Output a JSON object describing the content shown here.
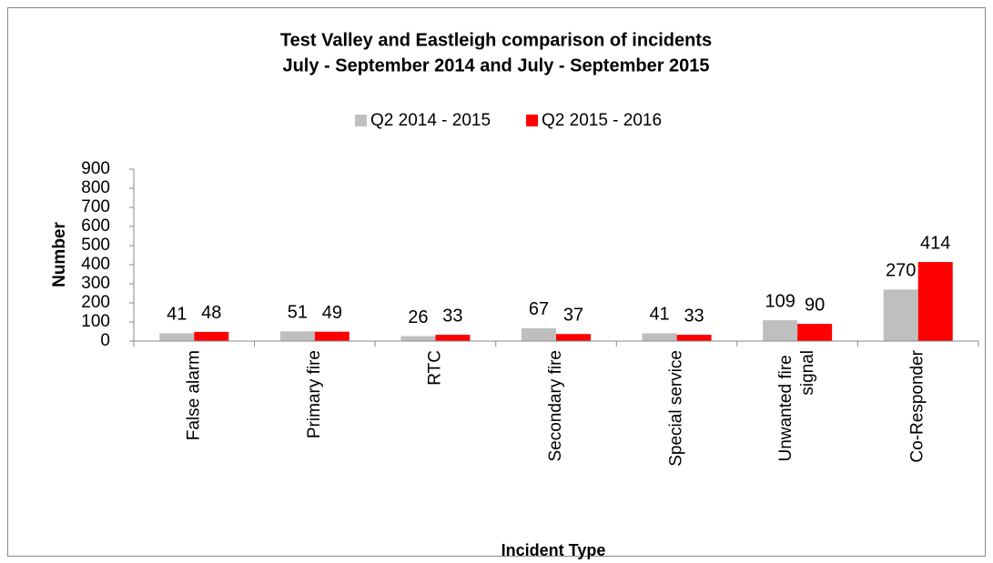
{
  "chart_data": {
    "type": "bar",
    "title": [
      "Test Valley and Eastleigh comparison of incidents",
      "July - September 2014 and July - September 2015"
    ],
    "x_label": "Incident Type",
    "y_label": "Number",
    "categories": [
      "False alarm",
      "Primary fire",
      "RTC",
      "Secondary fire",
      "Special service",
      "Unwanted fire signal",
      "Co-Responder"
    ],
    "series": [
      {
        "name": "Q2 2014 - 2015",
        "color": "#bfbfbf",
        "values": [
          41,
          51,
          26,
          67,
          41,
          109,
          270
        ]
      },
      {
        "name": "Q2 2015 - 2016",
        "color": "#ff0000",
        "values": [
          48,
          49,
          33,
          37,
          33,
          90,
          414
        ]
      }
    ],
    "ylim": [
      0,
      900
    ],
    "yticks": [
      0,
      100,
      200,
      300,
      400,
      500,
      600,
      700,
      800,
      900
    ],
    "legend": "top",
    "grid": false
  }
}
